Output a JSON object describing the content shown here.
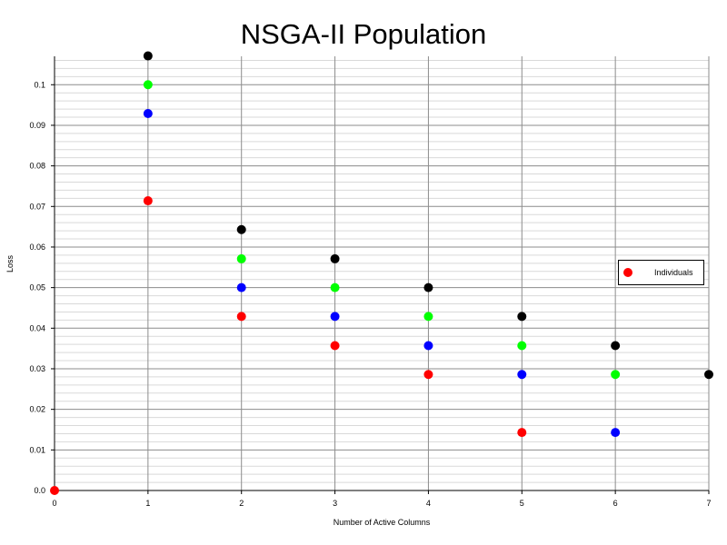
{
  "chart_data": {
    "type": "scatter",
    "title": "NSGA-II Population",
    "xlabel": "Number of Active Columns",
    "ylabel": "Loss",
    "xlim": [
      0,
      7
    ],
    "ylim": [
      0,
      0.107
    ],
    "x_ticks": [
      "0",
      "1",
      "2",
      "3",
      "4",
      "5",
      "6",
      "7"
    ],
    "y_ticks": [
      "0.0",
      "0.01",
      "0.02",
      "0.03",
      "0.04",
      "0.05",
      "0.06",
      "0.07",
      "0.08",
      "0.09",
      "0.1"
    ],
    "grid": true,
    "legend_position": "right",
    "legend": [
      "Individuals"
    ],
    "series": [
      {
        "name": "Individuals",
        "points": [
          {
            "x": 0,
            "y": 0.0,
            "color": "#ff0000"
          },
          {
            "x": 1,
            "y": 0.1071,
            "color": "#000000"
          },
          {
            "x": 1,
            "y": 0.1,
            "color": "#00ff00"
          },
          {
            "x": 1,
            "y": 0.0929,
            "color": "#0000ff"
          },
          {
            "x": 1,
            "y": 0.0714,
            "color": "#ff0000"
          },
          {
            "x": 2,
            "y": 0.0643,
            "color": "#000000"
          },
          {
            "x": 2,
            "y": 0.0571,
            "color": "#00ff00"
          },
          {
            "x": 2,
            "y": 0.05,
            "color": "#0000ff"
          },
          {
            "x": 2,
            "y": 0.0429,
            "color": "#ff0000"
          },
          {
            "x": 3,
            "y": 0.0571,
            "color": "#000000"
          },
          {
            "x": 3,
            "y": 0.05,
            "color": "#00ff00"
          },
          {
            "x": 3,
            "y": 0.0429,
            "color": "#0000ff"
          },
          {
            "x": 3,
            "y": 0.0357,
            "color": "#ff0000"
          },
          {
            "x": 4,
            "y": 0.05,
            "color": "#000000"
          },
          {
            "x": 4,
            "y": 0.0429,
            "color": "#00ff00"
          },
          {
            "x": 4,
            "y": 0.0357,
            "color": "#0000ff"
          },
          {
            "x": 4,
            "y": 0.0286,
            "color": "#ff0000"
          },
          {
            "x": 5,
            "y": 0.0429,
            "color": "#000000"
          },
          {
            "x": 5,
            "y": 0.0357,
            "color": "#00ff00"
          },
          {
            "x": 5,
            "y": 0.0286,
            "color": "#0000ff"
          },
          {
            "x": 5,
            "y": 0.0143,
            "color": "#ff0000"
          },
          {
            "x": 6,
            "y": 0.0357,
            "color": "#000000"
          },
          {
            "x": 6,
            "y": 0.0286,
            "color": "#00ff00"
          },
          {
            "x": 6,
            "y": 0.0143,
            "color": "#0000ff"
          },
          {
            "x": 7,
            "y": 0.0286,
            "color": "#000000"
          }
        ]
      }
    ]
  }
}
